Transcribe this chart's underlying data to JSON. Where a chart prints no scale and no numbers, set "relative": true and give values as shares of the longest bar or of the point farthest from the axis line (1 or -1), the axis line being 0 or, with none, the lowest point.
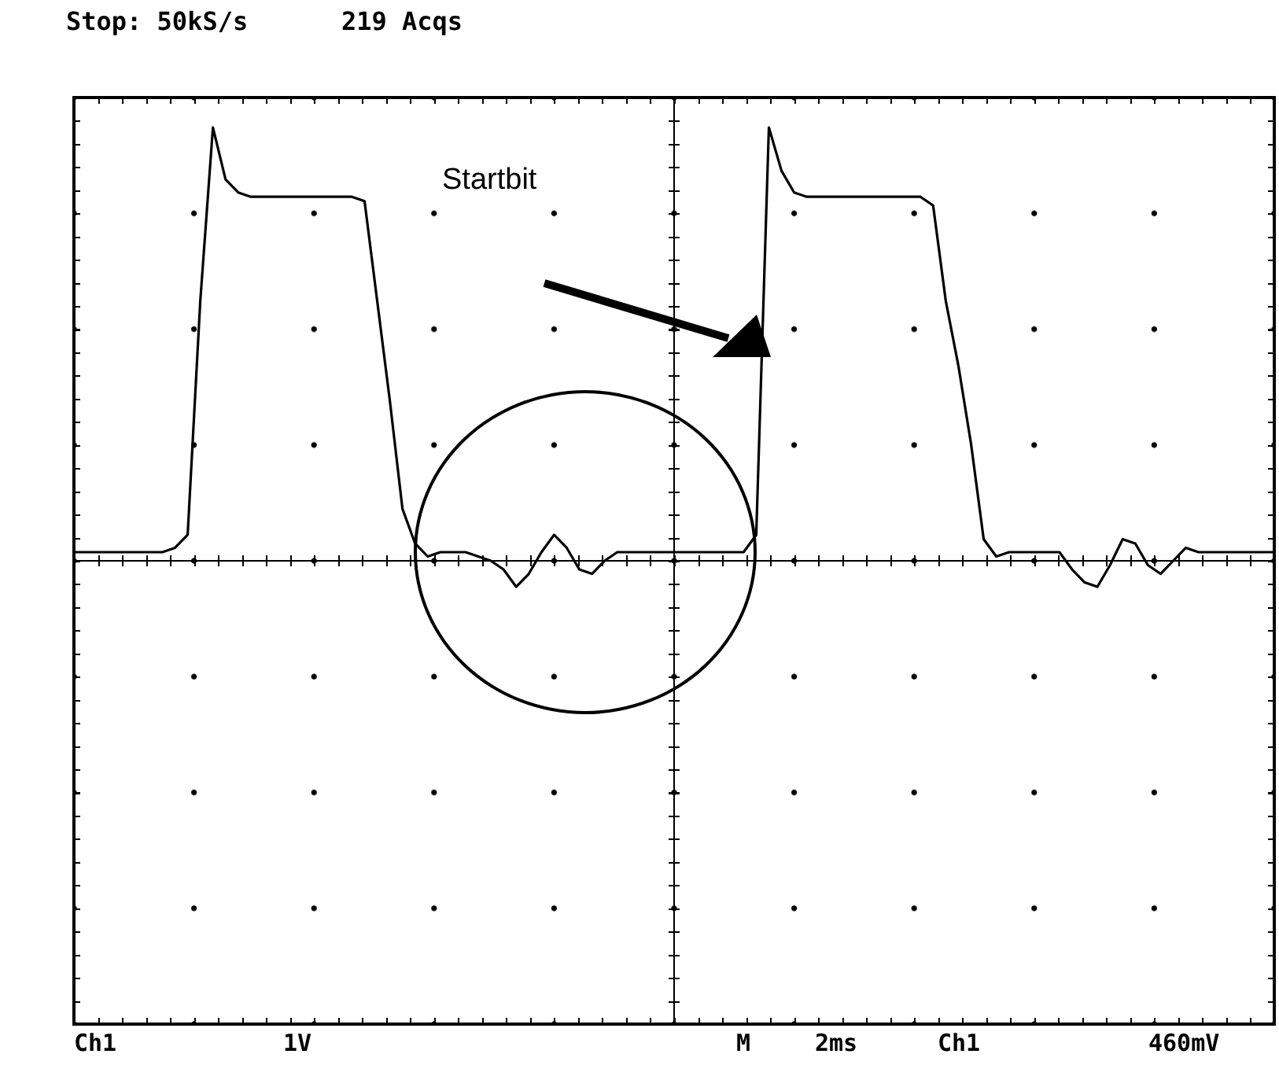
{
  "chart_data": {
    "type": "line",
    "relative": true,
    "legend": false,
    "marker": "none",
    "line_style": "solid",
    "annotations": [
      "Stop: 50kS/s",
      "219 Acqs",
      "Startbit",
      "Ch1",
      "1V",
      "M",
      "2ms",
      "Ch1",
      "460mV"
    ],
    "categories": [
      null,
      null,
      null,
      null,
      null,
      null,
      null,
      null,
      null,
      null,
      null,
      null,
      null,
      null,
      null,
      null,
      null,
      null,
      null,
      null,
      null,
      null,
      null,
      null,
      null,
      null,
      null,
      null,
      null,
      null,
      null,
      null,
      null,
      null,
      null,
      null,
      null,
      null,
      null,
      null,
      null,
      null,
      null,
      null,
      null,
      null,
      null,
      null,
      null,
      null,
      null,
      null,
      null,
      null,
      null,
      null,
      null,
      null,
      null,
      null,
      null,
      null,
      null,
      null,
      null,
      null,
      null,
      null,
      null,
      null,
      null,
      null,
      null,
      null,
      null,
      null,
      null,
      null,
      null,
      null,
      null,
      null,
      null,
      null,
      null,
      null,
      null,
      null,
      null,
      null,
      null,
      null,
      null,
      null,
      null,
      null
    ],
    "series": [
      {
        "color": "#000000",
        "values": [
          0.02,
          0.02,
          0.02,
          0.02,
          0.02,
          0.02,
          0.02,
          0.02,
          0.03,
          0.06,
          0.6,
          1.0,
          0.88,
          0.85,
          0.84,
          0.84,
          0.84,
          0.84,
          0.84,
          0.84,
          0.84,
          0.84,
          0.84,
          0.83,
          0.6,
          0.37,
          0.12,
          0.04,
          0.01,
          0.02,
          0.02,
          0.02,
          0.01,
          0.0,
          -0.02,
          -0.06,
          -0.03,
          0.02,
          0.06,
          0.03,
          -0.02,
          -0.03,
          0.0,
          0.02,
          0.02,
          0.02,
          0.02,
          0.02,
          0.02,
          0.02,
          0.02,
          0.02,
          0.02,
          0.02,
          0.06,
          1.0,
          0.9,
          0.85,
          0.84,
          0.84,
          0.84,
          0.84,
          0.84,
          0.84,
          0.84,
          0.84,
          0.84,
          0.84,
          0.82,
          0.6,
          0.45,
          0.27,
          0.05,
          0.01,
          0.02,
          0.02,
          0.02,
          0.02,
          0.02,
          -0.02,
          -0.05,
          -0.06,
          -0.01,
          0.05,
          0.04,
          -0.01,
          -0.03,
          0.0,
          0.03,
          0.02,
          0.02,
          0.02,
          0.02,
          0.02,
          0.02,
          0.02
        ]
      }
    ]
  }
}
